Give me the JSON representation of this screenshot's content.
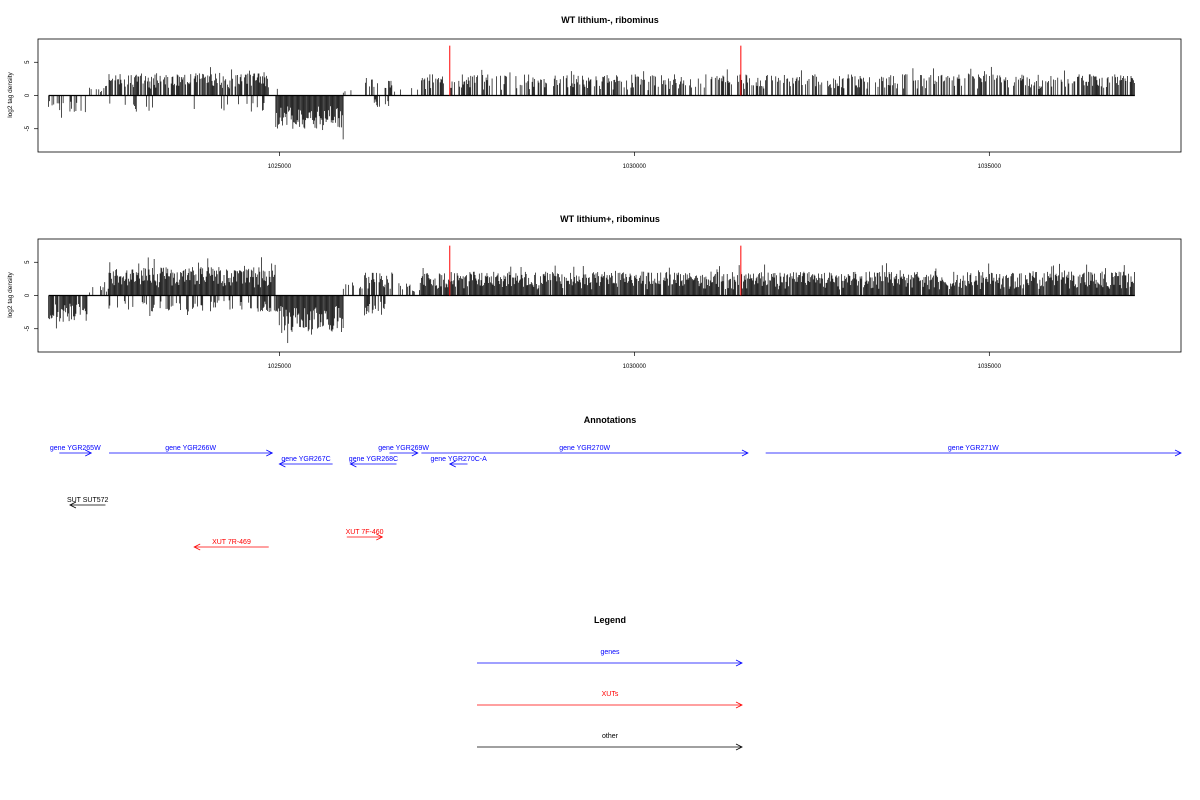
{
  "colors": {
    "gene": "#0000ff",
    "xut": "#ff0000",
    "other": "#000000",
    "marker": "#ff0000",
    "bars": "#000000"
  },
  "chart_data": [
    {
      "type": "bar",
      "title": "WT lithium-, ribominus",
      "ylabel": "log2 tag density",
      "xlim": [
        1021600,
        1037700
      ],
      "ylim": [
        -8.5,
        8.5
      ],
      "xticks": [
        1025000,
        1030000,
        1035000
      ],
      "yticks": [
        5,
        0,
        -5
      ],
      "marker_lines": [
        1027400,
        1031500
      ],
      "marker_height": 7.5,
      "segments": [
        {
          "from": 1021750,
          "to": 1022300,
          "sign": -1,
          "amp": 2.5,
          "density": 0.35
        },
        {
          "from": 1022300,
          "to": 1022600,
          "sign": 1,
          "amp": 1.5,
          "density": 0.2
        },
        {
          "from": 1022600,
          "to": 1024850,
          "sign": 1,
          "amp": 3.4,
          "density": 0.75
        },
        {
          "from": 1022600,
          "to": 1024850,
          "sign": -1,
          "amp": 2.3,
          "density": 0.12
        },
        {
          "from": 1024850,
          "to": 1025000,
          "sign": 1,
          "amp": 1.0,
          "density": 0.2
        },
        {
          "from": 1024950,
          "to": 1025900,
          "sign": -1,
          "amp": 5.0,
          "density": 1.0
        },
        {
          "from": 1025900,
          "to": 1026200,
          "sign": 1,
          "amp": 1.5,
          "density": 0.2
        },
        {
          "from": 1026200,
          "to": 1026600,
          "sign": 1,
          "amp": 2.8,
          "density": 0.45
        },
        {
          "from": 1026300,
          "to": 1026600,
          "sign": -1,
          "amp": 2.0,
          "density": 0.3
        },
        {
          "from": 1026600,
          "to": 1027000,
          "sign": 1,
          "amp": 1.5,
          "density": 0.15
        },
        {
          "from": 1027000,
          "to": 1037050,
          "sign": 1,
          "amp": 3.2,
          "density": 0.55
        }
      ]
    },
    {
      "type": "bar",
      "title": "WT lithium+, ribominus",
      "ylabel": "log2 tag density",
      "xlim": [
        1021600,
        1037700
      ],
      "ylim": [
        -8.5,
        8.5
      ],
      "xticks": [
        1025000,
        1030000,
        1035000
      ],
      "yticks": [
        5,
        0,
        -5
      ],
      "marker_lines": [
        1027400,
        1031500
      ],
      "marker_height": 7.5,
      "segments": [
        {
          "from": 1021750,
          "to": 1022300,
          "sign": -1,
          "amp": 4.0,
          "density": 0.9
        },
        {
          "from": 1022300,
          "to": 1022600,
          "sign": 1,
          "amp": 1.5,
          "density": 0.3
        },
        {
          "from": 1022600,
          "to": 1024950,
          "sign": 1,
          "amp": 4.3,
          "density": 1.0
        },
        {
          "from": 1022600,
          "to": 1024950,
          "sign": -1,
          "amp": 2.5,
          "density": 0.35
        },
        {
          "from": 1024950,
          "to": 1025900,
          "sign": -1,
          "amp": 5.5,
          "density": 1.0
        },
        {
          "from": 1025900,
          "to": 1026200,
          "sign": 1,
          "amp": 2.0,
          "density": 0.35
        },
        {
          "from": 1026200,
          "to": 1026600,
          "sign": 1,
          "amp": 3.5,
          "density": 0.8
        },
        {
          "from": 1026200,
          "to": 1026600,
          "sign": -1,
          "amp": 3.0,
          "density": 0.6
        },
        {
          "from": 1026600,
          "to": 1027000,
          "sign": 1,
          "amp": 2.0,
          "density": 0.3
        },
        {
          "from": 1027000,
          "to": 1037050,
          "sign": 1,
          "amp": 3.6,
          "density": 0.95
        }
      ]
    }
  ],
  "annotations": {
    "title": "Annotations",
    "xlim": [
      1021600,
      1037700
    ],
    "features": [
      {
        "label": "gene YGR265W",
        "kind": "gene",
        "strand": "+",
        "start": 1021900,
        "end": 1022350,
        "row": 0
      },
      {
        "label": "gene YGR266W",
        "kind": "gene",
        "strand": "+",
        "start": 1022600,
        "end": 1024900,
        "row": 0
      },
      {
        "label": "gene YGR267C",
        "kind": "gene",
        "strand": "-",
        "start": 1025000,
        "end": 1025750,
        "row": 1
      },
      {
        "label": "gene YGR268C",
        "kind": "gene",
        "strand": "-",
        "start": 1026000,
        "end": 1026650,
        "row": 1
      },
      {
        "label": "gene YGR269W",
        "kind": "gene",
        "strand": "+",
        "start": 1026550,
        "end": 1026950,
        "row": 0
      },
      {
        "label": "gene YGR270C-A",
        "kind": "gene",
        "strand": "-",
        "start": 1027400,
        "end": 1027650,
        "row": 1
      },
      {
        "label": "gene YGR270W",
        "kind": "gene",
        "strand": "+",
        "start": 1027000,
        "end": 1031600,
        "row": 0
      },
      {
        "label": "gene YGR271W",
        "kind": "gene",
        "strand": "+",
        "start": 1031850,
        "end": 1037700,
        "row": 0
      },
      {
        "label": "SUT SUT572",
        "kind": "other",
        "strand": "-",
        "start": 1022050,
        "end": 1022550,
        "row": 3
      },
      {
        "label": "XUT 7F-460",
        "kind": "xut",
        "strand": "+",
        "start": 1025950,
        "end": 1026450,
        "row": 4
      },
      {
        "label": "XUT 7R-469",
        "kind": "xut",
        "strand": "-",
        "start": 1023800,
        "end": 1024850,
        "row": 5
      }
    ]
  },
  "legend": {
    "title": "Legend",
    "items": [
      {
        "label": "genes",
        "kind": "gene"
      },
      {
        "label": "XUTs",
        "kind": "xut"
      },
      {
        "label": "other",
        "kind": "other"
      }
    ]
  }
}
